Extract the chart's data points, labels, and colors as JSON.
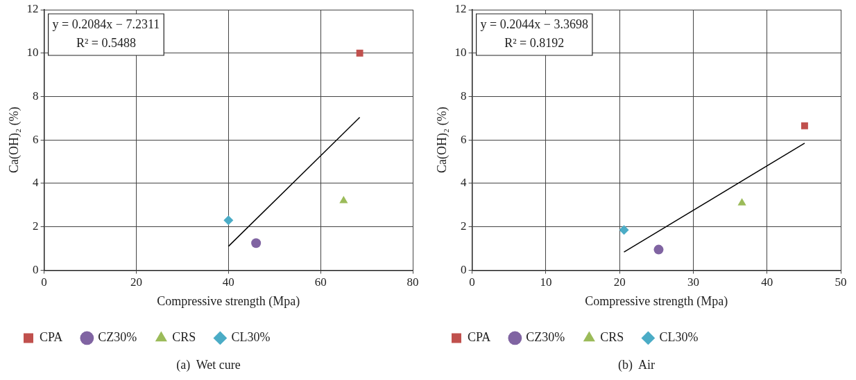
{
  "chart_data": [
    {
      "type": "scatter",
      "title": "(a)  Wet cure",
      "xlabel": "Compressive strength (Mpa)",
      "ylabel": "Ca(OH)₂ (%)",
      "xlim": [
        0,
        80
      ],
      "xticks": [
        0,
        20,
        40,
        60,
        80
      ],
      "ylim": [
        0,
        12
      ],
      "yticks": [
        0,
        2,
        4,
        6,
        8,
        10,
        12
      ],
      "grid": true,
      "legend": "bottom left",
      "annotations": [
        "y = 0.2084x − 7.2311",
        "R² = 0.5488"
      ],
      "series": [
        {
          "name": "CPA",
          "color": "#c0504d",
          "marker": "square",
          "x": [
            68.5
          ],
          "values": [
            10
          ]
        },
        {
          "name": "CZ30%",
          "color": "#8064a2",
          "marker": "circle",
          "x": [
            46
          ],
          "values": [
            1.25
          ]
        },
        {
          "name": "CRS",
          "color": "#9bbb59",
          "marker": "triangle",
          "x": [
            65
          ],
          "values": [
            3.2
          ]
        },
        {
          "name": "CL30%",
          "color": "#4bacc6",
          "marker": "diamond",
          "x": [
            40
          ],
          "values": [
            2.3
          ]
        },
        {
          "type": "line",
          "color": "#000000",
          "marker": "none",
          "x": [
            40,
            68.5
          ],
          "values": [
            1.1,
            7.04
          ]
        }
      ]
    },
    {
      "type": "scatter",
      "title": "(b)  Air",
      "xlabel": "Compressive strength (Mpa)",
      "ylabel": "Ca(OH)₂ (%)",
      "xlim": [
        0,
        50
      ],
      "xticks": [
        0,
        10,
        20,
        30,
        40,
        50
      ],
      "ylim": [
        0,
        12
      ],
      "yticks": [
        0,
        2,
        4,
        6,
        8,
        10,
        12
      ],
      "grid": true,
      "legend": "bottom left",
      "annotations": [
        "y = 0.2044x − 3.3698",
        "R² = 0.8192"
      ],
      "series": [
        {
          "name": "CPA",
          "color": "#c0504d",
          "marker": "square",
          "x": [
            45.1
          ],
          "values": [
            6.65
          ]
        },
        {
          "name": "CZ30%",
          "color": "#8064a2",
          "marker": "circle",
          "x": [
            25.3
          ],
          "values": [
            0.95
          ]
        },
        {
          "name": "CRS",
          "color": "#9bbb59",
          "marker": "triangle",
          "x": [
            36.6
          ],
          "values": [
            3.1
          ]
        },
        {
          "name": "CL30%",
          "color": "#4bacc6",
          "marker": "diamond",
          "x": [
            20.6
          ],
          "values": [
            1.85
          ]
        },
        {
          "type": "line",
          "color": "#000000",
          "marker": "none",
          "x": [
            20.6,
            45.1
          ],
          "values": [
            0.84,
            5.85
          ]
        }
      ]
    }
  ]
}
